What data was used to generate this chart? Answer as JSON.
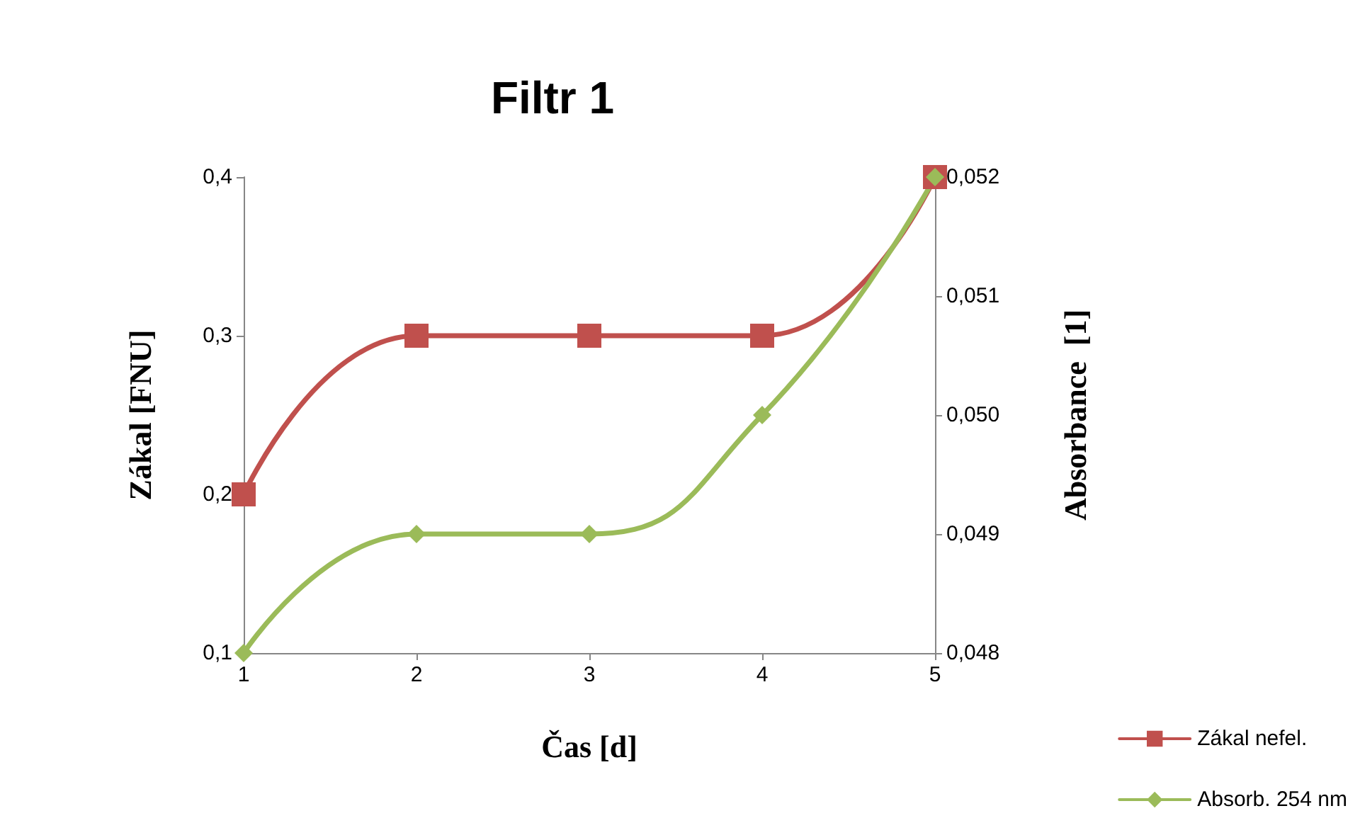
{
  "chart_data": {
    "type": "line",
    "title": "Filtr 1",
    "xlabel": "Čas [d]",
    "ylabel": "Zákal [FNU]",
    "y2label": "Absorbance  [1]",
    "x": [
      1,
      2,
      3,
      4,
      5
    ],
    "xlim": [
      1,
      5
    ],
    "xticks": [
      1,
      2,
      3,
      4,
      5
    ],
    "ylim": [
      0.1,
      0.4
    ],
    "yticks": [
      {
        "value": 0.1,
        "label": "0,1"
      },
      {
        "value": 0.2,
        "label": "0,2"
      },
      {
        "value": 0.3,
        "label": "0,3"
      },
      {
        "value": 0.4,
        "label": "0,4"
      }
    ],
    "y2lim": [
      0.048,
      0.052
    ],
    "y2ticks": [
      {
        "value": 0.048,
        "label": "0,048"
      },
      {
        "value": 0.049,
        "label": "0,049"
      },
      {
        "value": 0.05,
        "label": "0,050"
      },
      {
        "value": 0.051,
        "label": "0,051"
      },
      {
        "value": 0.052,
        "label": "0,052"
      }
    ],
    "series": [
      {
        "name": "Zákal nefel.",
        "color": "#c0504d",
        "marker": "square",
        "values": [
          0.2,
          0.3,
          0.3,
          0.3,
          0.4
        ]
      },
      {
        "name": "Absorb. 254 nm",
        "color": "#9bbb59",
        "marker": "diamond",
        "axis": "y2",
        "values": [
          0.048,
          0.049,
          0.049,
          0.05,
          0.052
        ]
      }
    ],
    "grid": false,
    "legend": "bottom right"
  }
}
